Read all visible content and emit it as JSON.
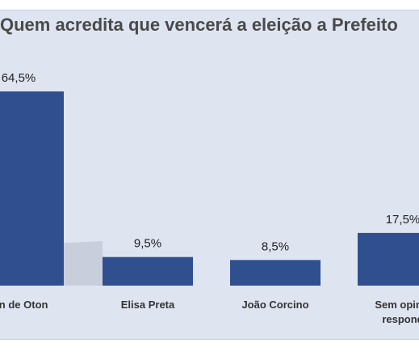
{
  "chart_data": {
    "type": "bar",
    "title": "Quem acredita que vencerá a eleição a Prefeito",
    "categories": [
      "ton de Oton",
      "Elisa Preta",
      "João Corcino",
      "Sem opiniã"
    ],
    "category_second_line": [
      "",
      "",
      "",
      "respond"
    ],
    "values": [
      64.5,
      9.5,
      8.5,
      17.5
    ],
    "value_labels": [
      "64,5%",
      "9,5%",
      "8,5%",
      "17,5%"
    ],
    "xlabel": "",
    "ylabel": "",
    "ylim": [
      0,
      70
    ],
    "grid": false,
    "legend": "none",
    "colors": {
      "bar": "#2f4f8f",
      "background": "#dfe4f1",
      "shadow": "#b7bccb"
    }
  }
}
